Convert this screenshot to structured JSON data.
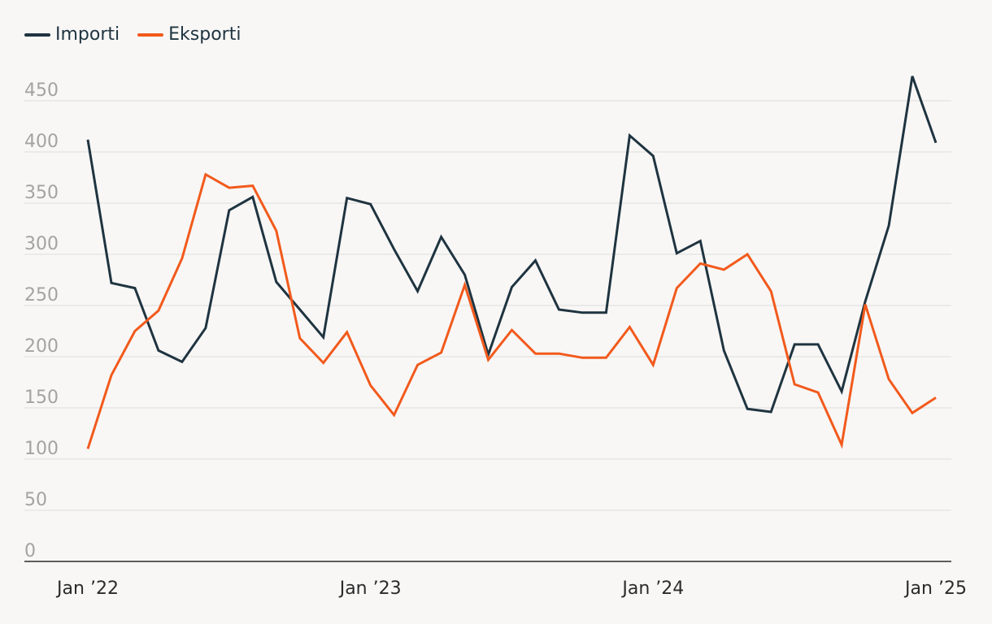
{
  "chart_data": {
    "type": "line",
    "title": "",
    "xlabel": "",
    "ylabel": "",
    "ylim": [
      0,
      450
    ],
    "yticks": [
      0,
      50,
      100,
      150,
      200,
      250,
      300,
      350,
      400,
      450
    ],
    "grid": true,
    "legend_position": "top-left",
    "x": [
      "2022-01",
      "2022-02",
      "2022-03",
      "2022-04",
      "2022-05",
      "2022-06",
      "2022-07",
      "2022-08",
      "2022-09",
      "2022-10",
      "2022-11",
      "2022-12",
      "2023-01",
      "2023-02",
      "2023-03",
      "2023-04",
      "2023-05",
      "2023-06",
      "2023-07",
      "2023-08",
      "2023-09",
      "2023-10",
      "2023-11",
      "2023-12",
      "2024-01",
      "2024-02",
      "2024-03",
      "2024-04",
      "2024-05",
      "2024-06",
      "2024-07",
      "2024-08",
      "2024-09",
      "2024-10",
      "2024-11",
      "2024-12",
      "2025-01"
    ],
    "xtick_labels": [
      {
        "index": 0,
        "label": "Jan ’22"
      },
      {
        "index": 12,
        "label": "Jan ’23"
      },
      {
        "index": 24,
        "label": "Jan ’24"
      },
      {
        "index": 36,
        "label": "Jan ’25"
      }
    ],
    "series": [
      {
        "name": "Importi",
        "color": "#1f3440",
        "values": [
          412,
          272,
          267,
          206,
          195,
          228,
          343,
          356,
          273,
          246,
          219,
          355,
          349,
          305,
          264,
          317,
          280,
          202,
          268,
          294,
          246,
          243,
          243,
          416,
          396,
          301,
          313,
          206,
          149,
          146,
          212,
          212,
          166,
          254,
          328,
          474,
          409
        ]
      },
      {
        "name": "Eksporti",
        "color": "#f25a1c",
        "values": [
          110,
          182,
          225,
          245,
          296,
          378,
          365,
          367,
          323,
          218,
          194,
          224,
          172,
          143,
          192,
          204,
          270,
          197,
          226,
          203,
          203,
          199,
          199,
          229,
          192,
          267,
          291,
          285,
          300,
          264,
          173,
          165,
          114,
          251,
          178,
          145,
          160
        ]
      }
    ]
  }
}
